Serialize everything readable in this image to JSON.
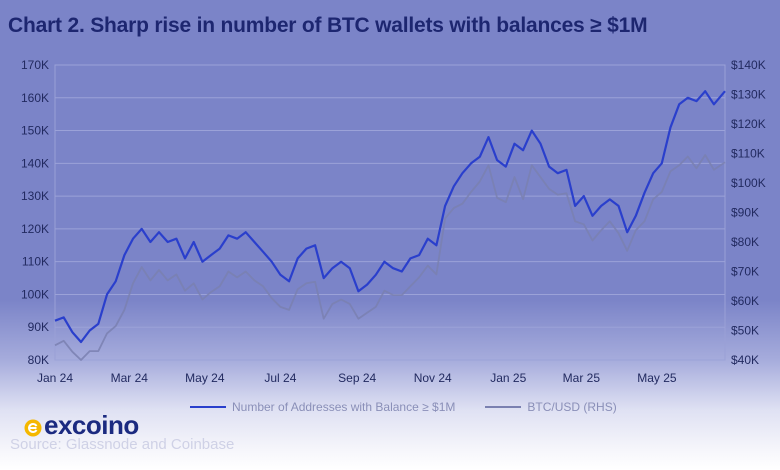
{
  "title": "Chart 2. Sharp rise in number of BTC wallets with balances ≥ $1M",
  "colors": {
    "series1": "#2a3fcc",
    "series2": "#7a80b0",
    "brand_accent": "#f5b800",
    "brand_text": "#1b2a80"
  },
  "chart_data": {
    "type": "line",
    "x_ticks": [
      "Jan 24",
      "Mar 24",
      "May 24",
      "Jul 24",
      "Sep 24",
      "Nov 24",
      "Jan 25",
      "Mar 25",
      "May 25"
    ],
    "y_left_ticks": [
      "170K",
      "160K",
      "150K",
      "140K",
      "130K",
      "120K",
      "110K",
      "100K",
      "90K",
      "80K"
    ],
    "y_right_ticks": [
      "$140K",
      "$130K",
      "$120K",
      "$110K",
      "$100K",
      "$90K",
      "$80K",
      "$70K",
      "$60K",
      "$50K",
      "$40K"
    ],
    "y_left_range": [
      80000,
      170000
    ],
    "y_right_range": [
      40000,
      140000
    ],
    "x_range": [
      "2024-01-01",
      "2025-06-25"
    ],
    "grid": "horizontal",
    "legend_position": "bottom",
    "series": [
      {
        "name": "Number of Addresses with Balance ≥ $1M",
        "axis": "left",
        "points": [
          [
            "2024-01-01",
            92000
          ],
          [
            "2024-01-08",
            93000
          ],
          [
            "2024-01-15",
            88500
          ],
          [
            "2024-01-22",
            85500
          ],
          [
            "2024-01-29",
            89000
          ],
          [
            "2024-02-05",
            91000
          ],
          [
            "2024-02-12",
            100000
          ],
          [
            "2024-02-19",
            104000
          ],
          [
            "2024-02-26",
            112000
          ],
          [
            "2024-03-04",
            117000
          ],
          [
            "2024-03-11",
            120000
          ],
          [
            "2024-03-18",
            116000
          ],
          [
            "2024-03-25",
            119000
          ],
          [
            "2024-04-01",
            116000
          ],
          [
            "2024-04-08",
            117000
          ],
          [
            "2024-04-15",
            111000
          ],
          [
            "2024-04-22",
            116000
          ],
          [
            "2024-04-29",
            110000
          ],
          [
            "2024-05-06",
            112000
          ],
          [
            "2024-05-13",
            114000
          ],
          [
            "2024-05-20",
            118000
          ],
          [
            "2024-05-27",
            117000
          ],
          [
            "2024-06-03",
            119000
          ],
          [
            "2024-06-10",
            116000
          ],
          [
            "2024-06-17",
            113000
          ],
          [
            "2024-06-24",
            110000
          ],
          [
            "2024-07-01",
            106000
          ],
          [
            "2024-07-08",
            104000
          ],
          [
            "2024-07-15",
            111000
          ],
          [
            "2024-07-22",
            114000
          ],
          [
            "2024-07-29",
            115000
          ],
          [
            "2024-08-05",
            105000
          ],
          [
            "2024-08-12",
            108000
          ],
          [
            "2024-08-19",
            110000
          ],
          [
            "2024-08-26",
            108000
          ],
          [
            "2024-09-02",
            101000
          ],
          [
            "2024-09-09",
            103000
          ],
          [
            "2024-09-16",
            106000
          ],
          [
            "2024-09-23",
            110000
          ],
          [
            "2024-09-30",
            108000
          ],
          [
            "2024-10-07",
            107000
          ],
          [
            "2024-10-14",
            111000
          ],
          [
            "2024-10-21",
            112000
          ],
          [
            "2024-10-28",
            117000
          ],
          [
            "2024-11-04",
            115000
          ],
          [
            "2024-11-11",
            127000
          ],
          [
            "2024-11-18",
            133000
          ],
          [
            "2024-11-25",
            137000
          ],
          [
            "2024-12-02",
            140000
          ],
          [
            "2024-12-09",
            142000
          ],
          [
            "2024-12-16",
            148000
          ],
          [
            "2024-12-23",
            141000
          ],
          [
            "2024-12-30",
            139000
          ],
          [
            "2025-01-06",
            146000
          ],
          [
            "2025-01-13",
            144000
          ],
          [
            "2025-01-20",
            150000
          ],
          [
            "2025-01-27",
            146000
          ],
          [
            "2025-02-03",
            139000
          ],
          [
            "2025-02-10",
            137000
          ],
          [
            "2025-02-17",
            138000
          ],
          [
            "2025-02-24",
            127000
          ],
          [
            "2025-03-03",
            130000
          ],
          [
            "2025-03-10",
            124000
          ],
          [
            "2025-03-17",
            127000
          ],
          [
            "2025-03-24",
            129000
          ],
          [
            "2025-03-31",
            127000
          ],
          [
            "2025-04-07",
            119000
          ],
          [
            "2025-04-14",
            124000
          ],
          [
            "2025-04-21",
            131000
          ],
          [
            "2025-04-28",
            137000
          ],
          [
            "2025-05-05",
            140000
          ],
          [
            "2025-05-12",
            151000
          ],
          [
            "2025-05-19",
            158000
          ],
          [
            "2025-05-26",
            160000
          ],
          [
            "2025-06-02",
            159000
          ],
          [
            "2025-06-09",
            162000
          ],
          [
            "2025-06-16",
            158000
          ],
          [
            "2025-06-25",
            162000
          ]
        ]
      },
      {
        "name": "BTC/USD (RHS)",
        "axis": "right",
        "points": [
          [
            "2024-01-01",
            45000
          ],
          [
            "2024-01-08",
            46500
          ],
          [
            "2024-01-15",
            42800
          ],
          [
            "2024-01-22",
            40000
          ],
          [
            "2024-01-29",
            43000
          ],
          [
            "2024-02-05",
            43000
          ],
          [
            "2024-02-12",
            49000
          ],
          [
            "2024-02-19",
            51500
          ],
          [
            "2024-02-26",
            57000
          ],
          [
            "2024-03-04",
            66000
          ],
          [
            "2024-03-11",
            71500
          ],
          [
            "2024-03-18",
            67000
          ],
          [
            "2024-03-25",
            70500
          ],
          [
            "2024-04-01",
            67000
          ],
          [
            "2024-04-08",
            69000
          ],
          [
            "2024-04-15",
            63500
          ],
          [
            "2024-04-22",
            66000
          ],
          [
            "2024-04-29",
            60500
          ],
          [
            "2024-05-06",
            63000
          ],
          [
            "2024-05-13",
            65000
          ],
          [
            "2024-05-20",
            70000
          ],
          [
            "2024-05-27",
            68000
          ],
          [
            "2024-06-03",
            70000
          ],
          [
            "2024-06-10",
            67000
          ],
          [
            "2024-06-17",
            65000
          ],
          [
            "2024-06-24",
            61000
          ],
          [
            "2024-07-01",
            58000
          ],
          [
            "2024-07-08",
            57000
          ],
          [
            "2024-07-15",
            64000
          ],
          [
            "2024-07-22",
            66000
          ],
          [
            "2024-07-29",
            66500
          ],
          [
            "2024-08-05",
            54000
          ],
          [
            "2024-08-12",
            59000
          ],
          [
            "2024-08-19",
            60500
          ],
          [
            "2024-08-26",
            59000
          ],
          [
            "2024-09-02",
            54000
          ],
          [
            "2024-09-09",
            56000
          ],
          [
            "2024-09-16",
            58000
          ],
          [
            "2024-09-23",
            63500
          ],
          [
            "2024-09-30",
            62000
          ],
          [
            "2024-10-07",
            62000
          ],
          [
            "2024-10-14",
            65000
          ],
          [
            "2024-10-21",
            68000
          ],
          [
            "2024-10-28",
            72000
          ],
          [
            "2024-11-04",
            69000
          ],
          [
            "2024-11-11",
            88000
          ],
          [
            "2024-11-18",
            91500
          ],
          [
            "2024-11-25",
            93000
          ],
          [
            "2024-12-02",
            97000
          ],
          [
            "2024-12-09",
            100500
          ],
          [
            "2024-12-16",
            106000
          ],
          [
            "2024-12-23",
            95000
          ],
          [
            "2024-12-30",
            93500
          ],
          [
            "2025-01-06",
            102000
          ],
          [
            "2025-01-13",
            94500
          ],
          [
            "2025-01-20",
            106000
          ],
          [
            "2025-01-27",
            102000
          ],
          [
            "2025-02-03",
            98000
          ],
          [
            "2025-02-10",
            96000
          ],
          [
            "2025-02-17",
            96500
          ],
          [
            "2025-02-24",
            87000
          ],
          [
            "2025-03-03",
            86000
          ],
          [
            "2025-03-10",
            80500
          ],
          [
            "2025-03-17",
            84000
          ],
          [
            "2025-03-24",
            87000
          ],
          [
            "2025-03-31",
            83000
          ],
          [
            "2025-04-07",
            77000
          ],
          [
            "2025-04-14",
            84000
          ],
          [
            "2025-04-21",
            87000
          ],
          [
            "2025-04-28",
            94500
          ],
          [
            "2025-05-05",
            97000
          ],
          [
            "2025-05-12",
            104000
          ],
          [
            "2025-05-19",
            106000
          ],
          [
            "2025-05-26",
            109000
          ],
          [
            "2025-06-02",
            105000
          ],
          [
            "2025-06-09",
            109500
          ],
          [
            "2025-06-16",
            104500
          ],
          [
            "2025-06-25",
            107000
          ]
        ]
      }
    ]
  },
  "brand": {
    "name": "excoino"
  },
  "source": "Source: Glassnode and Coinbase"
}
